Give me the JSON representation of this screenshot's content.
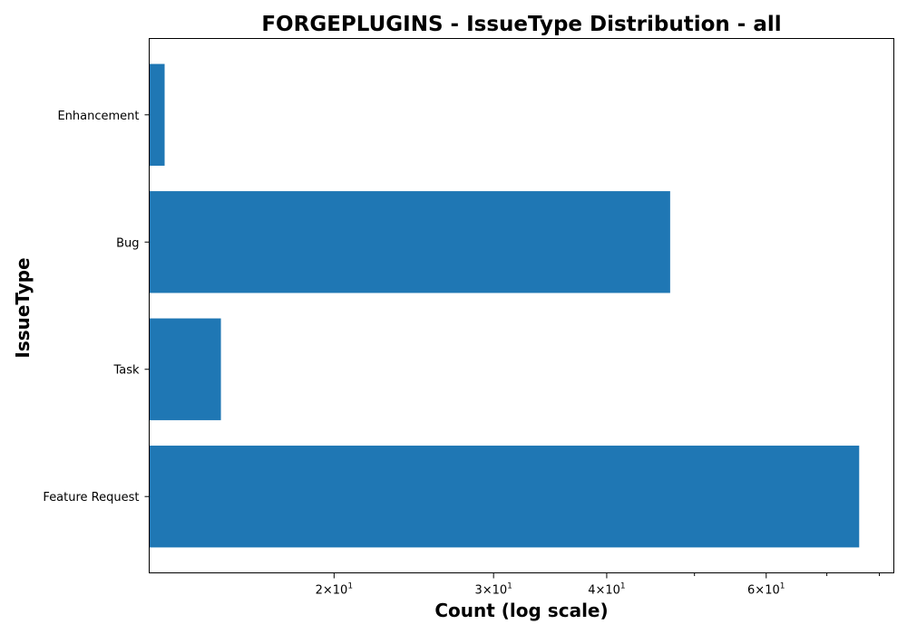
{
  "chart_data": {
    "type": "bar",
    "orientation": "horizontal",
    "title": "FORGEPLUGINS - IssueType Distribution - all",
    "xlabel": "Count (log scale)",
    "ylabel": "IssueType",
    "xscale": "log",
    "xlim": [
      12.5,
      83
    ],
    "categories": [
      "Enhancement",
      "Bug",
      "Task",
      "Feature Request"
    ],
    "values": [
      13,
      47,
      15,
      76
    ],
    "bar_color": "#1f77b4",
    "x_major_ticks": [
      {
        "value": 20,
        "base": "2×10",
        "exp": "1"
      },
      {
        "value": 30,
        "base": "3×10",
        "exp": "1"
      },
      {
        "value": 40,
        "base": "4×10",
        "exp": "1"
      },
      {
        "value": 60,
        "base": "6×10",
        "exp": "1"
      }
    ],
    "x_minor_ticks": [
      50,
      70,
      80
    ],
    "grid": false
  }
}
